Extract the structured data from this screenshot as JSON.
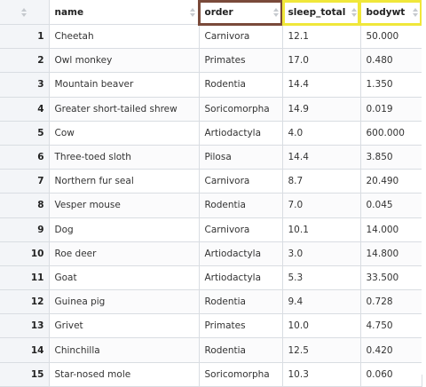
{
  "columns": [
    {
      "key": "name",
      "label": "name"
    },
    {
      "key": "order",
      "label": "order"
    },
    {
      "key": "sleep_total",
      "label": "sleep_total"
    },
    {
      "key": "bodywt",
      "label": "bodywt"
    }
  ],
  "highlight_colors": {
    "order": "#7a4a3a",
    "sleep_total": "#f0e73a",
    "bodywt": "#f0e73a"
  },
  "rows": [
    {
      "idx": "1",
      "name": "Cheetah",
      "order": "Carnivora",
      "sleep_total": "12.1",
      "bodywt": "50.000"
    },
    {
      "idx": "2",
      "name": "Owl monkey",
      "order": "Primates",
      "sleep_total": "17.0",
      "bodywt": "0.480"
    },
    {
      "idx": "3",
      "name": "Mountain beaver",
      "order": "Rodentia",
      "sleep_total": "14.4",
      "bodywt": "1.350"
    },
    {
      "idx": "4",
      "name": "Greater short-tailed shrew",
      "order": "Soricomorpha",
      "sleep_total": "14.9",
      "bodywt": "0.019"
    },
    {
      "idx": "5",
      "name": "Cow",
      "order": "Artiodactyla",
      "sleep_total": "4.0",
      "bodywt": "600.000"
    },
    {
      "idx": "6",
      "name": "Three-toed sloth",
      "order": "Pilosa",
      "sleep_total": "14.4",
      "bodywt": "3.850"
    },
    {
      "idx": "7",
      "name": "Northern fur seal",
      "order": "Carnivora",
      "sleep_total": "8.7",
      "bodywt": "20.490"
    },
    {
      "idx": "8",
      "name": "Vesper mouse",
      "order": "Rodentia",
      "sleep_total": "7.0",
      "bodywt": "0.045"
    },
    {
      "idx": "9",
      "name": "Dog",
      "order": "Carnivora",
      "sleep_total": "10.1",
      "bodywt": "14.000"
    },
    {
      "idx": "10",
      "name": "Roe deer",
      "order": "Artiodactyla",
      "sleep_total": "3.0",
      "bodywt": "14.800"
    },
    {
      "idx": "11",
      "name": "Goat",
      "order": "Artiodactyla",
      "sleep_total": "5.3",
      "bodywt": "33.500"
    },
    {
      "idx": "12",
      "name": "Guinea pig",
      "order": "Rodentia",
      "sleep_total": "9.4",
      "bodywt": "0.728"
    },
    {
      "idx": "13",
      "name": "Grivet",
      "order": "Primates",
      "sleep_total": "10.0",
      "bodywt": "4.750"
    },
    {
      "idx": "14",
      "name": "Chinchilla",
      "order": "Rodentia",
      "sleep_total": "12.5",
      "bodywt": "0.420"
    },
    {
      "idx": "15",
      "name": "Star-nosed mole",
      "order": "Soricomorpha",
      "sleep_total": "10.3",
      "bodywt": "0.060"
    }
  ]
}
